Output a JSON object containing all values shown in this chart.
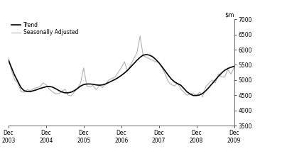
{
  "trend_x": [
    0,
    1,
    2,
    3,
    4,
    5,
    6,
    7,
    8,
    9,
    10,
    11,
    12,
    13,
    14,
    15,
    16,
    17,
    18,
    19,
    20,
    21,
    22,
    23,
    24,
    25,
    26,
    27,
    28,
    29,
    30,
    31,
    32,
    33,
    34,
    35,
    36,
    37,
    38,
    39,
    40,
    41,
    42,
    43,
    44,
    45,
    46,
    47,
    48,
    49,
    50,
    51,
    52,
    53,
    54,
    55,
    56,
    57,
    58,
    59,
    60,
    61,
    62,
    63,
    64,
    65,
    66,
    67,
    68,
    69,
    70,
    71,
    72
  ],
  "trend_y": [
    5650,
    5400,
    5150,
    4950,
    4750,
    4650,
    4620,
    4620,
    4650,
    4680,
    4720,
    4750,
    4780,
    4790,
    4770,
    4720,
    4660,
    4610,
    4580,
    4580,
    4600,
    4650,
    4720,
    4800,
    4850,
    4870,
    4870,
    4860,
    4840,
    4830,
    4840,
    4870,
    4920,
    4970,
    5020,
    5080,
    5150,
    5230,
    5320,
    5430,
    5540,
    5650,
    5750,
    5820,
    5840,
    5820,
    5770,
    5680,
    5570,
    5440,
    5300,
    5160,
    5030,
    4940,
    4880,
    4830,
    4720,
    4610,
    4540,
    4490,
    4490,
    4510,
    4560,
    4650,
    4760,
    4880,
    5000,
    5120,
    5230,
    5320,
    5380,
    5420,
    5450
  ],
  "seas_x": [
    0,
    1,
    2,
    3,
    4,
    5,
    6,
    7,
    8,
    9,
    10,
    11,
    12,
    13,
    14,
    15,
    16,
    17,
    18,
    19,
    20,
    21,
    22,
    23,
    24,
    25,
    26,
    27,
    28,
    29,
    30,
    31,
    32,
    33,
    34,
    35,
    36,
    37,
    38,
    39,
    40,
    41,
    42,
    43,
    44,
    45,
    46,
    47,
    48,
    49,
    50,
    51,
    52,
    53,
    54,
    55,
    56,
    57,
    58,
    59,
    60,
    61,
    62,
    63,
    64,
    65,
    66,
    67,
    68,
    69,
    70,
    71,
    72
  ],
  "seas_y": [
    5750,
    5300,
    5000,
    4900,
    4620,
    4600,
    4680,
    4650,
    4720,
    4750,
    4780,
    4900,
    4850,
    4700,
    4620,
    4550,
    4550,
    4620,
    4700,
    4500,
    4480,
    4600,
    4720,
    4900,
    5400,
    4800,
    4780,
    4820,
    4680,
    4820,
    4750,
    4880,
    5000,
    5050,
    5100,
    5250,
    5400,
    5600,
    5300,
    5500,
    5700,
    5900,
    6450,
    5800,
    5750,
    5700,
    5650,
    5600,
    5580,
    5400,
    5200,
    4950,
    4850,
    4800,
    4900,
    4700,
    4600,
    4500,
    4550,
    4550,
    4500,
    4600,
    4450,
    4780,
    4900,
    5000,
    4900,
    5200,
    5100,
    5100,
    5350,
    5200,
    5400
  ],
  "trend_color": "#000000",
  "seas_color": "#b0b0b0",
  "trend_lw": 1.2,
  "seas_lw": 0.8,
  "ylim": [
    3500,
    7000
  ],
  "yticks": [
    3500,
    4000,
    4500,
    5000,
    5500,
    6000,
    6500,
    7000
  ],
  "xtick_positions": [
    0,
    12,
    24,
    36,
    48,
    60,
    72
  ],
  "xtick_labels": [
    "Dec\n2003",
    "Dec\n2004",
    "Dec\n2005",
    "Dec\n2006",
    "Dec\n2007",
    "Dec\n2008",
    "Dec\n2009"
  ],
  "legend_trend": "Trend",
  "legend_seas": "Seasonally Adjusted",
  "bg_color": "#ffffff"
}
